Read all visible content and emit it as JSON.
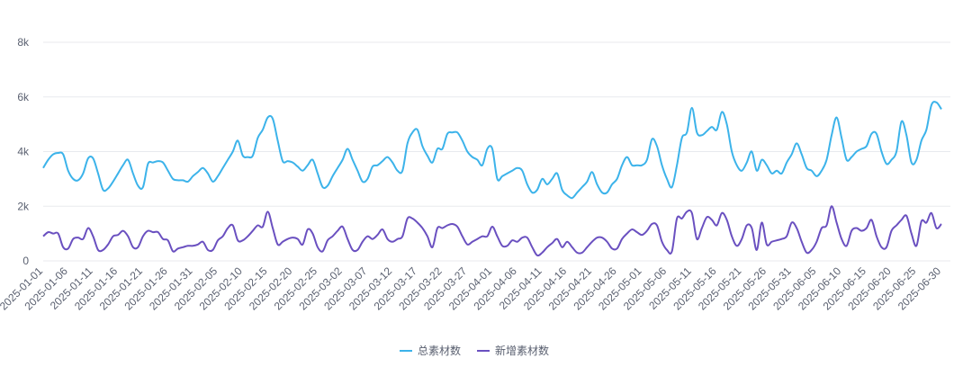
{
  "chart_data": {
    "type": "line",
    "categories": [
      "2025-01-01",
      "2025-01-02",
      "2025-01-03",
      "2025-01-04",
      "2025-01-05",
      "2025-01-06",
      "2025-01-07",
      "2025-01-08",
      "2025-01-09",
      "2025-01-10",
      "2025-01-11",
      "2025-01-12",
      "2025-01-13",
      "2025-01-14",
      "2025-01-15",
      "2025-01-16",
      "2025-01-17",
      "2025-01-18",
      "2025-01-19",
      "2025-01-20",
      "2025-01-21",
      "2025-01-22",
      "2025-01-23",
      "2025-01-24",
      "2025-01-25",
      "2025-01-26",
      "2025-01-27",
      "2025-01-28",
      "2025-01-29",
      "2025-01-30",
      "2025-01-31",
      "2025-02-01",
      "2025-02-02",
      "2025-02-03",
      "2025-02-04",
      "2025-02-05",
      "2025-02-06",
      "2025-02-07",
      "2025-02-08",
      "2025-02-09",
      "2025-02-10",
      "2025-02-11",
      "2025-02-12",
      "2025-02-13",
      "2025-02-14",
      "2025-02-15",
      "2025-02-16",
      "2025-02-17",
      "2025-02-18",
      "2025-02-19",
      "2025-02-20",
      "2025-02-21",
      "2025-02-22",
      "2025-02-23",
      "2025-02-24",
      "2025-02-25",
      "2025-02-26",
      "2025-02-27",
      "2025-02-28",
      "2025-03-01",
      "2025-03-02",
      "2025-03-03",
      "2025-03-04",
      "2025-03-05",
      "2025-03-06",
      "2025-03-07",
      "2025-03-08",
      "2025-03-09",
      "2025-03-10",
      "2025-03-11",
      "2025-03-12",
      "2025-03-13",
      "2025-03-14",
      "2025-03-15",
      "2025-03-16",
      "2025-03-17",
      "2025-03-18",
      "2025-03-19",
      "2025-03-20",
      "2025-03-21",
      "2025-03-22",
      "2025-03-23",
      "2025-03-24",
      "2025-03-25",
      "2025-03-26",
      "2025-03-27",
      "2025-03-28",
      "2025-03-29",
      "2025-03-30",
      "2025-03-31",
      "2025-04-01",
      "2025-04-02",
      "2025-04-03",
      "2025-04-04",
      "2025-04-05",
      "2025-04-06",
      "2025-04-07",
      "2025-04-08",
      "2025-04-09",
      "2025-04-10",
      "2025-04-11",
      "2025-04-12",
      "2025-04-13",
      "2025-04-14",
      "2025-04-15",
      "2025-04-16",
      "2025-04-17",
      "2025-04-18",
      "2025-04-19",
      "2025-04-20",
      "2025-04-21",
      "2025-04-22",
      "2025-04-23",
      "2025-04-24",
      "2025-04-25",
      "2025-04-26",
      "2025-04-27",
      "2025-04-28",
      "2025-04-29",
      "2025-04-30",
      "2025-05-01",
      "2025-05-02",
      "2025-05-03",
      "2025-05-04",
      "2025-05-05",
      "2025-05-06",
      "2025-05-07",
      "2025-05-08",
      "2025-05-09",
      "2025-05-10",
      "2025-05-11",
      "2025-05-12",
      "2025-05-13",
      "2025-05-14",
      "2025-05-15",
      "2025-05-16",
      "2025-05-17",
      "2025-05-18",
      "2025-05-19",
      "2025-05-20",
      "2025-05-21",
      "2025-05-22",
      "2025-05-23",
      "2025-05-24",
      "2025-05-25",
      "2025-05-26",
      "2025-05-27",
      "2025-05-28",
      "2025-05-29",
      "2025-05-30",
      "2025-05-31",
      "2025-06-01",
      "2025-06-02",
      "2025-06-03",
      "2025-06-04",
      "2025-06-05",
      "2025-06-06",
      "2025-06-07",
      "2025-06-08",
      "2025-06-09",
      "2025-06-10",
      "2025-06-11",
      "2025-06-12",
      "2025-06-13",
      "2025-06-14",
      "2025-06-15",
      "2025-06-16",
      "2025-06-17",
      "2025-06-18",
      "2025-06-19",
      "2025-06-20",
      "2025-06-21",
      "2025-06-22",
      "2025-06-23",
      "2025-06-24",
      "2025-06-25",
      "2025-06-26",
      "2025-06-27",
      "2025-06-28",
      "2025-06-29",
      "2025-06-30"
    ],
    "label_every": 5,
    "series": [
      {
        "name": "总素材数",
        "color": "#3cb3ea",
        "values": [
          3400,
          3700,
          3900,
          3950,
          3900,
          3300,
          3000,
          2950,
          3200,
          3750,
          3750,
          3200,
          2600,
          2650,
          2900,
          3200,
          3500,
          3700,
          3200,
          2750,
          2700,
          3550,
          3600,
          3650,
          3600,
          3300,
          3000,
          2950,
          2950,
          2900,
          3100,
          3250,
          3400,
          3200,
          2900,
          3100,
          3400,
          3700,
          4000,
          4400,
          3850,
          3800,
          3850,
          4500,
          4800,
          5250,
          5200,
          4400,
          3650,
          3650,
          3600,
          3450,
          3300,
          3500,
          3700,
          3200,
          2700,
          2750,
          3100,
          3400,
          3700,
          4100,
          3700,
          3300,
          2900,
          3000,
          3450,
          3500,
          3650,
          3800,
          3600,
          3300,
          3300,
          4300,
          4700,
          4800,
          4200,
          3850,
          3600,
          4100,
          4100,
          4650,
          4700,
          4700,
          4400,
          4000,
          3800,
          3700,
          3500,
          4100,
          4100,
          3000,
          3100,
          3200,
          3300,
          3400,
          3300,
          2800,
          2500,
          2600,
          3000,
          2800,
          3000,
          3200,
          2600,
          2400,
          2300,
          2500,
          2700,
          2900,
          3250,
          2800,
          2500,
          2500,
          2800,
          3000,
          3500,
          3800,
          3500,
          3500,
          3500,
          3700,
          4450,
          4200,
          3500,
          3000,
          2700,
          3500,
          4500,
          4700,
          5600,
          4700,
          4600,
          4750,
          4900,
          4800,
          5450,
          5000,
          4000,
          3500,
          3300,
          3600,
          4000,
          3300,
          3700,
          3500,
          3200,
          3300,
          3200,
          3600,
          3900,
          4300,
          3900,
          3400,
          3300,
          3100,
          3300,
          3700,
          4600,
          5250,
          4500,
          3700,
          3800,
          4000,
          4100,
          4200,
          4650,
          4650,
          4000,
          3550,
          3700,
          4000,
          5100,
          4600,
          3600,
          3700,
          4400,
          4800,
          5700,
          5800,
          5550
        ]
      },
      {
        "name": "新增素材数",
        "color": "#6a50c0",
        "values": [
          900,
          1050,
          1000,
          1000,
          500,
          450,
          800,
          850,
          800,
          1200,
          900,
          400,
          400,
          600,
          900,
          950,
          1100,
          900,
          500,
          500,
          900,
          1100,
          1050,
          1050,
          800,
          750,
          350,
          450,
          500,
          550,
          550,
          600,
          700,
          400,
          400,
          750,
          900,
          1200,
          1300,
          750,
          750,
          900,
          1100,
          1300,
          1250,
          1800,
          1200,
          600,
          700,
          800,
          850,
          800,
          600,
          1150,
          1000,
          500,
          350,
          750,
          900,
          1100,
          1250,
          800,
          400,
          400,
          700,
          900,
          800,
          950,
          1150,
          800,
          700,
          800,
          900,
          1550,
          1550,
          1400,
          1200,
          900,
          500,
          1200,
          1200,
          1300,
          1350,
          1250,
          900,
          600,
          700,
          800,
          900,
          900,
          1250,
          900,
          550,
          550,
          750,
          700,
          850,
          850,
          500,
          200,
          300,
          500,
          650,
          800,
          500,
          700,
          500,
          300,
          300,
          500,
          700,
          850,
          850,
          700,
          450,
          450,
          800,
          1000,
          1150,
          1050,
          950,
          1100,
          1350,
          1300,
          700,
          400,
          350,
          1550,
          1550,
          1800,
          1750,
          800,
          1200,
          1600,
          1500,
          1300,
          1750,
          1500,
          900,
          550,
          800,
          1300,
          1200,
          400,
          1400,
          600,
          700,
          750,
          800,
          900,
          1400,
          1200,
          700,
          300,
          400,
          700,
          1200,
          1300,
          2000,
          1400,
          800,
          550,
          1100,
          1200,
          1100,
          1200,
          1500,
          900,
          500,
          500,
          1100,
          1300,
          1500,
          1650,
          1000,
          550,
          1450,
          1400,
          1750,
          1200,
          1350
        ]
      }
    ],
    "ylim": [
      0,
      8000
    ],
    "yticks": [
      0,
      {
        "value": 2000,
        "label": "2k"
      },
      {
        "value": 4000,
        "label": "4k"
      },
      {
        "value": 6000,
        "label": "6k"
      },
      {
        "value": 8000,
        "label": "8k"
      }
    ],
    "grid": true,
    "legend": "bottom"
  }
}
